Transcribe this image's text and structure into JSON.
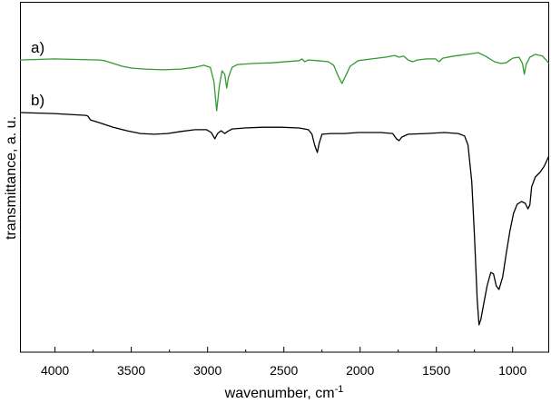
{
  "chart_data": {
    "type": "line",
    "xlabel": "wavenumber, cm",
    "xlabel_superscript": "-1",
    "ylabel": "transmittance, a. u.",
    "xlim": [
      4230,
      760
    ],
    "ylim": [
      0,
      100
    ],
    "x_reversed": true,
    "xticks": [
      4000,
      3500,
      3000,
      2500,
      2000,
      1500,
      1000
    ],
    "xtick_labels": [
      "4000",
      "3500",
      "3000",
      "2500",
      "2000",
      "1500",
      "1000"
    ],
    "grid": false,
    "series": [
      {
        "name": "a)",
        "color": "#339933",
        "x": [
          4230,
          4006,
          3708,
          3678,
          3619,
          3559,
          3500,
          3411,
          3292,
          3173,
          3083,
          3024,
          2982,
          2958,
          2940,
          2923,
          2905,
          2887,
          2875,
          2863,
          2839,
          2804,
          2696,
          2577,
          2399,
          2381,
          2363,
          2339,
          2280,
          2208,
          2173,
          2143,
          2119,
          2095,
          2065,
          2012,
          1923,
          1833,
          1774,
          1744,
          1714,
          1685,
          1655,
          1625,
          1566,
          1506,
          1482,
          1458,
          1387,
          1268,
          1226,
          1178,
          1119,
          1077,
          1042,
          1000,
          958,
          935,
          923,
          911,
          887,
          851,
          804,
          780,
          762
        ],
        "y": [
          83.4,
          83.7,
          83.4,
          83.2,
          82.4,
          81.6,
          81.1,
          80.8,
          80.6,
          80.8,
          81.3,
          81.9,
          81.3,
          77.2,
          68.9,
          75.9,
          80.3,
          79.3,
          75.4,
          78.5,
          81.3,
          82.1,
          82.4,
          82.6,
          83.2,
          83.7,
          82.9,
          83.4,
          83.2,
          82.9,
          81.9,
          78.8,
          76.7,
          78.8,
          81.6,
          83.2,
          83.7,
          84.2,
          84.7,
          84.2,
          84.5,
          83.4,
          82.9,
          83.4,
          83.7,
          83.7,
          82.9,
          83.9,
          84.5,
          85.2,
          85.5,
          84.5,
          82.9,
          82.4,
          82.6,
          83.9,
          84.2,
          82.4,
          79.3,
          82.1,
          84.2,
          85.0,
          84.5,
          83.4,
          82.4
        ]
      },
      {
        "name": "b)",
        "color": "#000000",
        "x": [
          4230,
          4006,
          3797,
          3786,
          3768,
          3708,
          3619,
          3530,
          3440,
          3351,
          3262,
          3173,
          3083,
          3006,
          2976,
          2952,
          2934,
          2911,
          2887,
          2869,
          2839,
          2756,
          2637,
          2518,
          2399,
          2339,
          2315,
          2298,
          2280,
          2268,
          2250,
          2190,
          2101,
          2012,
          1863,
          1786,
          1762,
          1744,
          1726,
          1685,
          1566,
          1446,
          1357,
          1315,
          1292,
          1268,
          1250,
          1232,
          1220,
          1208,
          1190,
          1167,
          1143,
          1125,
          1107,
          1089,
          1065,
          1042,
          1018,
          994,
          970,
          941,
          917,
          899,
          887,
          875,
          851,
          821,
          792,
          762
        ],
        "y": [
          68.4,
          68.1,
          67.6,
          67.4,
          66.3,
          65.5,
          64.2,
          63.2,
          62.4,
          62.2,
          62.4,
          63.0,
          63.5,
          63.5,
          62.7,
          60.9,
          62.4,
          63.2,
          62.4,
          63.0,
          63.7,
          64.0,
          64.2,
          64.2,
          64.0,
          63.5,
          62.2,
          59.1,
          57.0,
          59.6,
          62.2,
          62.4,
          62.4,
          62.7,
          62.7,
          62.4,
          60.9,
          60.4,
          61.4,
          62.2,
          62.4,
          62.7,
          62.4,
          61.7,
          59.1,
          48.7,
          33.2,
          15.0,
          7.8,
          9.3,
          13.7,
          18.9,
          22.8,
          22.3,
          18.9,
          17.9,
          21.5,
          28.0,
          34.5,
          39.6,
          42.2,
          43.0,
          42.5,
          40.9,
          42.0,
          47.2,
          50.0,
          51.3,
          53.1,
          56.0
        ]
      }
    ]
  }
}
